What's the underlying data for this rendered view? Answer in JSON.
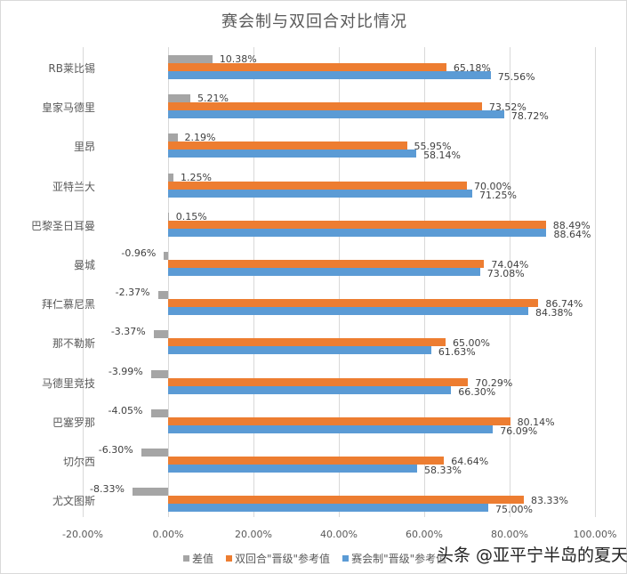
{
  "chart_data": {
    "type": "bar",
    "orientation": "horizontal",
    "title": "赛会制与双回合对比情况",
    "xlabel": "",
    "ylabel": "",
    "xlim": [
      -0.2,
      1.0
    ],
    "x_ticks": [
      "-20.00%",
      "0.00%",
      "20.00%",
      "40.00%",
      "60.00%",
      "80.00%",
      "100.00%"
    ],
    "grid": true,
    "legend_position": "bottom",
    "categories": [
      "RB莱比锡",
      "皇家马德里",
      "里昂",
      "亚特兰大",
      "巴黎圣日耳曼",
      "曼城",
      "拜仁慕尼黑",
      "那不勒斯",
      "马德里竞技",
      "巴塞罗那",
      "切尔西",
      "尤文图斯"
    ],
    "series": [
      {
        "name": "差值",
        "color": "#A5A5A5",
        "values": [
          10.38,
          5.21,
          2.19,
          1.25,
          0.15,
          -0.96,
          -2.37,
          -3.37,
          -3.99,
          -4.05,
          -6.3,
          -8.33
        ],
        "labels": [
          "10.38%",
          "5.21%",
          "2.19%",
          "1.25%",
          "0.15%",
          "-0.96%",
          "-2.37%",
          "-3.37%",
          "-3.99%",
          "-4.05%",
          "-6.30%",
          "-8.33%"
        ]
      },
      {
        "name": "双回合\"晋级\"参考值",
        "color": "#ED7D31",
        "values": [
          65.18,
          73.52,
          55.95,
          70.0,
          88.49,
          74.04,
          86.74,
          65.0,
          70.29,
          80.14,
          64.64,
          83.33
        ],
        "labels": [
          "65.18%",
          "73.52%",
          "55.95%",
          "70.00%",
          "88.49%",
          "74.04%",
          "86.74%",
          "65.00%",
          "70.29%",
          "80.14%",
          "64.64%",
          "83.33%"
        ]
      },
      {
        "name": "赛会制\"晋级\"参考值",
        "color": "#5B9BD5",
        "values": [
          75.56,
          78.72,
          58.14,
          71.25,
          88.64,
          73.08,
          84.38,
          61.63,
          66.3,
          76.09,
          58.33,
          75.0
        ],
        "labels": [
          "75.56%",
          "78.72%",
          "58.14%",
          "71.25%",
          "88.64%",
          "73.08%",
          "84.38%",
          "61.63%",
          "66.30%",
          "76.09%",
          "58.33%",
          "75.00%"
        ]
      }
    ]
  },
  "legend": {
    "items": [
      {
        "label": "差值",
        "color": "#A5A5A5"
      },
      {
        "label": "双回合\"晋级\"参考值",
        "color": "#ED7D31"
      },
      {
        "label": "赛会制\"晋级\"参考值",
        "color": "#5B9BD5"
      }
    ]
  },
  "watermark": "头条 @亚平宁半岛的夏天"
}
